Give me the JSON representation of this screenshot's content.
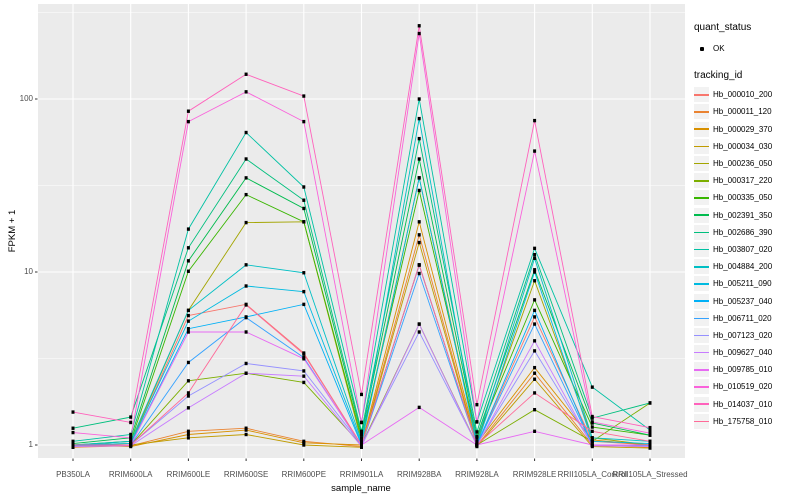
{
  "legend": {
    "quant_status_title": "quant_status",
    "quant_status_items": [
      {
        "label": "OK"
      }
    ],
    "tracking_id_title": "tracking_id"
  },
  "colors": {
    "panel_background": "#EBEBEB",
    "gridline": "#FFFFFF",
    "tick_label": "#4D4D4D",
    "point": "#000000",
    "legend_key_background": "#F2F2F2"
  },
  "chart_data": {
    "type": "line",
    "title": "",
    "xlabel": "sample_name",
    "ylabel": "FPKM + 1",
    "y_scale": "log10",
    "y_ticks": [
      1,
      10,
      100
    ],
    "y_tick_labels": [
      "1",
      "10",
      "100"
    ],
    "y_minor_ticks": [
      3.1623,
      31.623,
      316.23
    ],
    "ylim": [
      0.84,
      354
    ],
    "grid": true,
    "legend_position": "right",
    "x_categories": [
      "PB350LA",
      "RRIM600LA",
      "RRIM600LE",
      "RRIM600SE",
      "RRIM600PE",
      "RRIM901LA",
      "RRIM928BA",
      "RRIM928LA",
      "RRIM928LE",
      "RRII105LA_Control",
      "RRII105LA_Stressed"
    ],
    "quant_status": "OK",
    "series": [
      {
        "name": "Hb_000010_200",
        "color": "#F8766D",
        "values": [
          1.0,
          1.0,
          5.6,
          6.5,
          3.4,
          1.0,
          11.0,
          1.0,
          5.5,
          1.05,
          1.0
        ]
      },
      {
        "name": "Hb_000011_120",
        "color": "#EA8331",
        "values": [
          0.97,
          0.99,
          1.2,
          1.25,
          1.05,
          0.98,
          16.4,
          0.99,
          2.6,
          1.0,
          0.97
        ]
      },
      {
        "name": "Hb_000029_370",
        "color": "#D89000",
        "values": [
          1.0,
          0.98,
          1.15,
          1.22,
          1.03,
          1.0,
          19.5,
          1.02,
          2.8,
          1.07,
          1.0
        ]
      },
      {
        "name": "Hb_000034_030",
        "color": "#C09B00",
        "values": [
          0.98,
          1.0,
          1.1,
          1.15,
          1.0,
          0.97,
          14.8,
          0.98,
          2.4,
          0.98,
          0.96
        ]
      },
      {
        "name": "Hb_000236_050",
        "color": "#A3A500",
        "values": [
          1.0,
          1.02,
          6.0,
          19.3,
          19.5,
          1.05,
          35.0,
          1.04,
          8.9,
          1.1,
          1.0
        ]
      },
      {
        "name": "Hb_000317_220",
        "color": "#7CAE00",
        "values": [
          1.0,
          1.0,
          2.35,
          2.6,
          2.3,
          1.0,
          5.0,
          1.0,
          1.6,
          1.05,
          1.75
        ]
      },
      {
        "name": "Hb_000335_050",
        "color": "#39B600",
        "values": [
          1.0,
          1.05,
          10.1,
          28.0,
          19.5,
          1.1,
          29.6,
          1.1,
          6.9,
          1.27,
          1.14
        ]
      },
      {
        "name": "Hb_002391_350",
        "color": "#00BB4E",
        "values": [
          1.02,
          1.1,
          11.6,
          35.0,
          23.3,
          1.15,
          45.0,
          1.12,
          10.3,
          1.34,
          1.14
        ]
      },
      {
        "name": "Hb_002686_390",
        "color": "#00BF7D",
        "values": [
          1.25,
          1.45,
          13.8,
          45.0,
          26.0,
          1.2,
          59.0,
          1.19,
          12.6,
          1.43,
          1.75
        ]
      },
      {
        "name": "Hb_003807_020",
        "color": "#00C1A3",
        "values": [
          1.05,
          1.15,
          17.7,
          64.0,
          31.0,
          1.35,
          100.0,
          1.36,
          13.7,
          2.16,
          1.22
        ]
      },
      {
        "name": "Hb_004884_200",
        "color": "#00BFC4",
        "values": [
          1.0,
          1.05,
          6.0,
          11.0,
          9.9,
          1.05,
          77.0,
          1.05,
          12.0,
          1.1,
          1.05
        ]
      },
      {
        "name": "Hb_005211_090",
        "color": "#00BAE0",
        "values": [
          1.0,
          1.02,
          5.2,
          8.3,
          7.7,
          1.02,
          35.0,
          1.0,
          10.0,
          1.05,
          1.02
        ]
      },
      {
        "name": "Hb_005237_040",
        "color": "#00B0F6",
        "values": [
          1.0,
          1.0,
          4.7,
          5.5,
          6.5,
          1.0,
          10.95,
          1.0,
          6.0,
          1.0,
          1.0
        ]
      },
      {
        "name": "Hb_006711_020",
        "color": "#35A2FF",
        "values": [
          0.99,
          1.0,
          3.0,
          5.45,
          3.2,
          0.99,
          9.8,
          1.0,
          5.0,
          1.0,
          0.99
        ]
      },
      {
        "name": "Hb_007123_020",
        "color": "#9590FF",
        "values": [
          1.0,
          1.0,
          1.92,
          2.96,
          2.68,
          1.0,
          4.5,
          1.0,
          3.5,
          1.0,
          1.0
        ]
      },
      {
        "name": "Hb_009627_040",
        "color": "#C77CFF",
        "values": [
          0.98,
          0.99,
          1.64,
          2.6,
          2.5,
          0.98,
          5.0,
          0.99,
          4.0,
          0.99,
          0.98
        ]
      },
      {
        "name": "Hb_009785_010",
        "color": "#E76BF3",
        "values": [
          1.0,
          1.0,
          4.5,
          4.5,
          3.15,
          1.0,
          1.65,
          1.0,
          1.2,
          1.0,
          1.0
        ]
      },
      {
        "name": "Hb_010519_020",
        "color": "#FA62DB",
        "values": [
          1.18,
          1.1,
          74.0,
          110.0,
          74.0,
          1.35,
          239.0,
          1.36,
          50.0,
          1.36,
          1.17
        ]
      },
      {
        "name": "Hb_014037_010",
        "color": "#FF62BC",
        "values": [
          1.55,
          1.35,
          85.0,
          139.0,
          104.0,
          1.96,
          265.0,
          1.71,
          75.0,
          1.46,
          1.26
        ]
      },
      {
        "name": "Hb_175758_010",
        "color": "#FF6A98",
        "values": [
          1.0,
          1.0,
          2.0,
          6.45,
          3.35,
          1.0,
          11.0,
          1.0,
          2.0,
          1.2,
          1.05
        ]
      }
    ]
  }
}
